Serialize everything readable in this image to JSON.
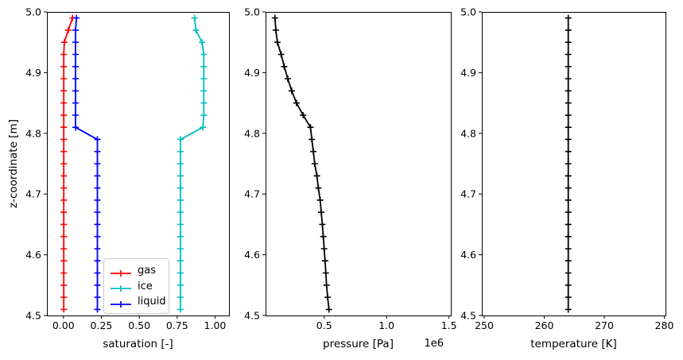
{
  "figure": {
    "background": "#ffffff",
    "text_color": "#000000"
  },
  "chart_data": [
    {
      "type": "line",
      "name": "saturation",
      "xlabel": "saturation [-]",
      "ylabel": "z-coordinate [m]",
      "xlim": [
        -0.109,
        1.092
      ],
      "ylim": [
        4.5,
        5.0
      ],
      "xticks": [
        0.0,
        0.25,
        0.5,
        0.75,
        1.0
      ],
      "xtick_labels": [
        "0.00",
        "0.25",
        "0.50",
        "0.75",
        "1.00"
      ],
      "yticks": [
        5.0,
        4.9,
        4.8,
        4.7,
        4.6,
        4.5
      ],
      "ytick_labels": [
        "5.0",
        "4.9",
        "4.8",
        "4.7",
        "4.6",
        "4.5"
      ],
      "z": [
        4.99,
        4.97,
        4.95,
        4.93,
        4.91,
        4.89,
        4.87,
        4.85,
        4.83,
        4.81,
        4.79,
        4.77,
        4.75,
        4.73,
        4.71,
        4.69,
        4.67,
        4.65,
        4.63,
        4.61,
        4.59,
        4.57,
        4.55,
        4.53,
        4.51
      ],
      "series": [
        {
          "name": "gas",
          "color": "#ff0000",
          "marker": "+",
          "values": [
            0.06,
            0.032,
            0.006,
            0.002,
            0.002,
            0.002,
            0.002,
            0.002,
            0.002,
            0.002,
            0.002,
            0.002,
            0.002,
            0.002,
            0.002,
            0.002,
            0.002,
            0.002,
            0.002,
            0.002,
            0.002,
            0.002,
            0.002,
            0.002,
            0.002
          ]
        },
        {
          "name": "ice",
          "color": "#00bfbf",
          "marker": "+",
          "values": [
            0.865,
            0.874,
            0.914,
            0.926,
            0.926,
            0.926,
            0.926,
            0.926,
            0.926,
            0.92,
            0.772,
            0.772,
            0.772,
            0.772,
            0.772,
            0.772,
            0.772,
            0.772,
            0.772,
            0.772,
            0.772,
            0.772,
            0.772,
            0.772,
            0.772
          ]
        },
        {
          "name": "liquid",
          "color": "#0000ff",
          "marker": "+",
          "values": [
            0.086,
            0.08,
            0.08,
            0.08,
            0.08,
            0.08,
            0.08,
            0.08,
            0.08,
            0.08,
            0.224,
            0.224,
            0.224,
            0.224,
            0.224,
            0.224,
            0.224,
            0.224,
            0.224,
            0.224,
            0.224,
            0.224,
            0.224,
            0.224,
            0.224
          ]
        }
      ],
      "legend": {
        "visible": true,
        "entries": [
          "gas",
          "ice",
          "liquid"
        ],
        "location": "lower center inside"
      }
    },
    {
      "type": "line",
      "name": "pressure",
      "xlabel": "pressure [Pa]",
      "ylabel": "",
      "x_offset_label": "1e6",
      "xlim": [
        30000,
        1515000
      ],
      "ylim": [
        4.5,
        5.0
      ],
      "xticks": [
        500000,
        1000000,
        1500000
      ],
      "xtick_labels": [
        "0.5",
        "1.0",
        "1.5"
      ],
      "yticks": [
        5.0,
        4.9,
        4.8,
        4.7,
        4.6,
        4.5
      ],
      "ytick_labels": [
        "5.0",
        "4.9",
        "4.8",
        "4.7",
        "4.6",
        "4.5"
      ],
      "z": [
        4.99,
        4.97,
        4.95,
        4.93,
        4.91,
        4.89,
        4.87,
        4.85,
        4.83,
        4.81,
        4.79,
        4.77,
        4.75,
        4.73,
        4.71,
        4.69,
        4.67,
        4.65,
        4.63,
        4.61,
        4.59,
        4.57,
        4.55,
        4.53,
        4.51
      ],
      "series": [
        {
          "name": "pressure",
          "color": "#000000",
          "marker": "+",
          "values": [
            105000,
            112000,
            125000,
            155000,
            180000,
            208000,
            240000,
            278000,
            331000,
            390000,
            401000,
            413000,
            424000,
            442000,
            453000,
            468000,
            476000,
            485000,
            493000,
            500000,
            507000,
            513000,
            519000,
            528000,
            538000
          ]
        }
      ],
      "legend": {
        "visible": false,
        "entries": []
      }
    },
    {
      "type": "line",
      "name": "temperature",
      "xlabel": "temperature [K]",
      "ylabel": "",
      "xlim": [
        249.6,
        280.2
      ],
      "ylim": [
        4.5,
        5.0
      ],
      "xticks": [
        250,
        260,
        270,
        280
      ],
      "xtick_labels": [
        "250",
        "260",
        "270",
        "280"
      ],
      "yticks": [
        5.0,
        4.9,
        4.8,
        4.7,
        4.6,
        4.5
      ],
      "ytick_labels": [
        "5.0",
        "4.9",
        "4.8",
        "4.7",
        "4.6",
        "4.5"
      ],
      "z": [
        4.99,
        4.97,
        4.95,
        4.93,
        4.91,
        4.89,
        4.87,
        4.85,
        4.83,
        4.81,
        4.79,
        4.77,
        4.75,
        4.73,
        4.71,
        4.69,
        4.67,
        4.65,
        4.63,
        4.61,
        4.59,
        4.57,
        4.55,
        4.53,
        4.51
      ],
      "series": [
        {
          "name": "temperature",
          "color": "#000000",
          "marker": "+",
          "values": [
            264.0,
            264.0,
            264.0,
            264.0,
            264.0,
            264.0,
            264.0,
            264.0,
            264.0,
            264.0,
            264.0,
            264.0,
            264.0,
            264.0,
            264.0,
            264.0,
            264.0,
            264.0,
            264.0,
            264.0,
            264.0,
            264.0,
            264.0,
            264.0,
            264.0
          ]
        }
      ],
      "legend": {
        "visible": false,
        "entries": []
      }
    }
  ]
}
